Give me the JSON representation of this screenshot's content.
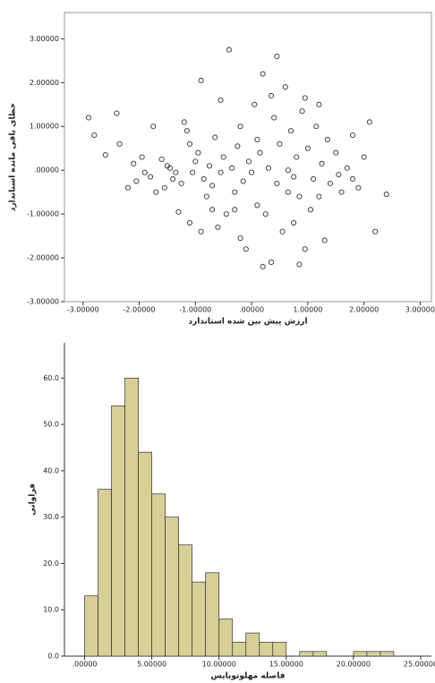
{
  "chart_data": [
    {
      "type": "scatter",
      "x_label": "ارزش پیش بین شده استاندارد",
      "y_label": "خطای باقی مانده استاندارد",
      "color": "#333333",
      "xlim": [
        -3.33,
        3.2
      ],
      "ylim": [
        -3,
        3.6
      ],
      "xticks": [
        {
          "value": -3,
          "label": "-3.00000"
        },
        {
          "value": -2,
          "label": "-2.00000"
        },
        {
          "value": -1,
          "label": "-1.00000"
        },
        {
          "value": 0,
          "label": ".00000"
        },
        {
          "value": 1,
          "label": "1.00000"
        },
        {
          "value": 2,
          "label": "2.00000"
        },
        {
          "value": 3,
          "label": "3.00000"
        }
      ],
      "yticks": [
        {
          "value": -3,
          "label": "-3.00000"
        },
        {
          "value": -2,
          "label": "-2.00000"
        },
        {
          "value": -1,
          "label": "-1.00000"
        },
        {
          "value": 0,
          "label": ".00000"
        },
        {
          "value": 1,
          "label": "1.00000"
        },
        {
          "value": 2,
          "label": "2.00000"
        },
        {
          "value": 3,
          "label": "3.00000"
        }
      ],
      "x": [
        -2.9,
        -2.8,
        -2.6,
        -2.4,
        -2.35,
        -2.1,
        -2.05,
        -1.95,
        -1.8,
        -1.7,
        -1.6,
        -1.55,
        -1.5,
        -1.45,
        -1.4,
        -1.35,
        -1.3,
        -1.25,
        -1.2,
        -1.15,
        -1.1,
        -1.05,
        -1.0,
        -0.95,
        -0.9,
        -0.85,
        -0.8,
        -0.75,
        -0.7,
        -0.65,
        -0.6,
        -0.55,
        -0.5,
        -0.45,
        -0.4,
        -0.35,
        -0.3,
        -0.25,
        -0.2,
        -0.15,
        -0.1,
        -0.05,
        0.0,
        0.05,
        0.1,
        0.15,
        0.2,
        0.25,
        0.3,
        0.35,
        0.4,
        0.45,
        0.5,
        0.55,
        0.6,
        0.65,
        0.7,
        0.75,
        0.8,
        0.85,
        0.9,
        0.95,
        1.0,
        1.05,
        1.1,
        1.15,
        1.2,
        1.25,
        1.3,
        1.35,
        1.4,
        1.5,
        1.6,
        1.7,
        1.8,
        1.9,
        2.0,
        2.1,
        2.2,
        2.4,
        -2.2,
        -0.9,
        0.45,
        -0.55,
        0.85,
        0.2,
        -0.2,
        1.55,
        -1.75,
        0.65,
        0.1,
        -0.3,
        1.2,
        0.95,
        -1.1,
        -0.7,
        0.35,
        1.8,
        -1.9,
        0.75
      ],
      "values": [
        1.2,
        0.8,
        0.35,
        1.3,
        0.6,
        0.15,
        -0.25,
        0.3,
        -0.15,
        -0.5,
        0.25,
        -0.4,
        0.1,
        0.05,
        -0.2,
        -0.05,
        -0.95,
        -0.3,
        1.1,
        0.9,
        0.6,
        -0.05,
        0.2,
        0.4,
        2.05,
        -0.2,
        -0.6,
        0.1,
        -0.35,
        0.75,
        -1.3,
        -0.05,
        0.3,
        -1.0,
        2.75,
        0.05,
        -0.5,
        0.55,
        1.0,
        -0.25,
        -1.8,
        0.2,
        -0.05,
        1.5,
        -0.8,
        0.4,
        2.2,
        -1.0,
        0.05,
        -2.1,
        1.2,
        -0.3,
        0.6,
        -1.4,
        1.9,
        -0.5,
        0.9,
        -1.2,
        0.3,
        -0.6,
        1.35,
        -1.8,
        0.5,
        -0.9,
        -0.2,
        1.0,
        -0.6,
        0.15,
        -1.6,
        0.7,
        -0.3,
        0.4,
        -0.5,
        0.05,
        0.8,
        -0.4,
        0.3,
        1.1,
        -1.4,
        -0.55,
        -0.4,
        -1.4,
        2.6,
        1.6,
        -2.15,
        -2.2,
        -1.55,
        -0.1,
        1.0,
        0.0,
        0.7,
        -0.9,
        1.5,
        1.65,
        -1.2,
        -0.9,
        1.7,
        -0.2,
        -0.05,
        -0.15
      ]
    },
    {
      "type": "histogram",
      "x_label": "فاصله مهلوتوبایس",
      "y_label": "فراوانی",
      "color": "#d8cf94",
      "xlim": [
        -1.5,
        25.8
      ],
      "ylim": [
        0,
        67.6
      ],
      "xticks": [
        {
          "value": 0,
          "label": ".00000"
        },
        {
          "value": 5,
          "label": "5.00000"
        },
        {
          "value": 10,
          "label": "10.00000"
        },
        {
          "value": 15,
          "label": "15.00000"
        },
        {
          "value": 20,
          "label": "20.00000"
        },
        {
          "value": 25,
          "label": "25.00000"
        }
      ],
      "yticks": [
        {
          "value": 0,
          "label": "0.0"
        },
        {
          "value": 10,
          "label": "10.0"
        },
        {
          "value": 20,
          "label": "20.0"
        },
        {
          "value": 30,
          "label": "30.0"
        },
        {
          "value": 40,
          "label": "40.0"
        },
        {
          "value": 50,
          "label": "50.0"
        },
        {
          "value": 60,
          "label": "60.0"
        }
      ],
      "bins": [
        0,
        1,
        2,
        3,
        4,
        5,
        6,
        7,
        8,
        9,
        10,
        11,
        12,
        13,
        14,
        15,
        16,
        17,
        18,
        19,
        20,
        21,
        22,
        23
      ],
      "values": [
        13,
        36,
        54,
        60,
        44,
        35,
        30,
        24,
        16,
        18,
        8,
        3,
        5,
        3,
        3,
        0,
        1,
        1,
        0,
        0,
        1,
        1,
        1
      ]
    }
  ]
}
